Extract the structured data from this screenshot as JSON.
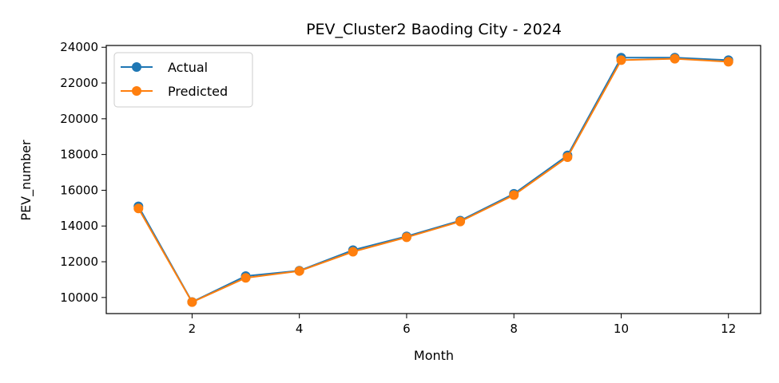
{
  "chart_data": {
    "type": "line",
    "title": "PEV_Cluster2 Baoding City - 2024",
    "xlabel": "Month",
    "ylabel": "PEV_number",
    "x": [
      1,
      2,
      3,
      4,
      5,
      6,
      7,
      8,
      9,
      10,
      11,
      12
    ],
    "xlim": [
      0.4,
      12.6
    ],
    "ylim": [
      9100,
      24100
    ],
    "xticks": [
      2,
      4,
      6,
      8,
      10,
      12
    ],
    "yticks": [
      10000,
      12000,
      14000,
      16000,
      18000,
      20000,
      22000,
      24000
    ],
    "grid": false,
    "legend_position": "top-left",
    "series": [
      {
        "name": "Actual",
        "color": "#1f77b4",
        "marker": "circle",
        "values": [
          15100,
          9750,
          11200,
          11500,
          12650,
          13420,
          14300,
          15800,
          17950,
          23420,
          23420,
          23280
        ]
      },
      {
        "name": "Predicted",
        "color": "#ff7f0e",
        "marker": "circle",
        "values": [
          14980,
          9740,
          11100,
          11480,
          12560,
          13370,
          14250,
          15730,
          17850,
          23280,
          23360,
          23190
        ]
      }
    ]
  }
}
